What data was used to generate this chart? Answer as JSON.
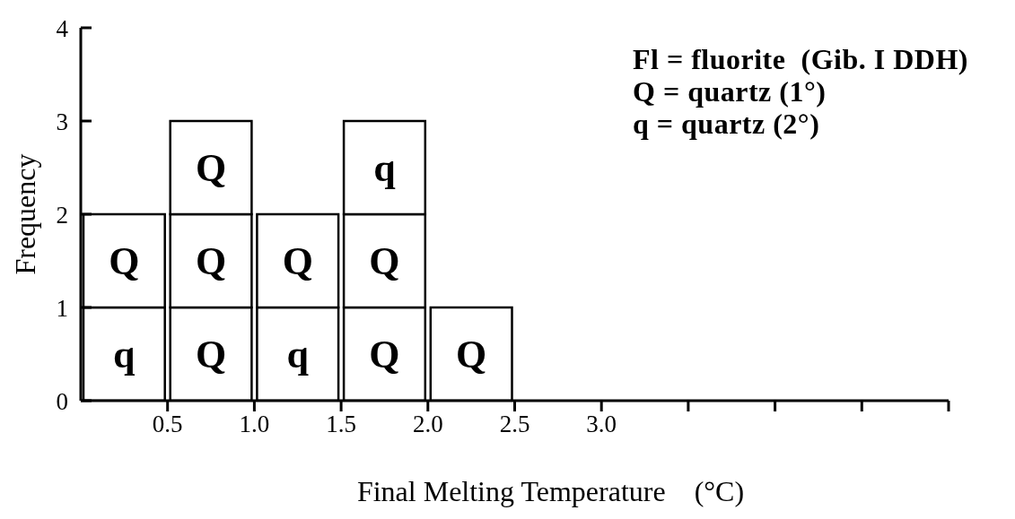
{
  "chart_data": {
    "type": "bar",
    "xlabel": "Final Melting Temperature    (°C)",
    "ylabel": "Frequency",
    "annotations": [
      "Fl = fluorite  (Gib. I DDH)",
      "Q = quartz (1°)",
      "q = quartz (2°)"
    ],
    "x": [
      0.25,
      0.75,
      1.25,
      1.75,
      2.25
    ],
    "stacked": true,
    "series": [
      {
        "color": "#ffffff",
        "values": [
          1,
          1,
          1,
          1,
          1
        ],
        "value_labels": [
          "q",
          "Q",
          "q",
          "Q",
          "Q"
        ]
      },
      {
        "color": "#ffffff",
        "values": [
          1,
          1,
          1,
          1,
          null
        ],
        "value_labels": [
          "Q",
          "Q",
          "Q",
          "Q",
          null
        ]
      },
      {
        "color": "#ffffff",
        "values": [
          null,
          1,
          null,
          1,
          null
        ],
        "value_labels": [
          null,
          "Q",
          null,
          "q",
          null
        ]
      }
    ],
    "xlim": [
      0,
      5
    ],
    "xticks": [
      0.5,
      {
        "value": 1.0,
        "label": "1.0"
      },
      1.5,
      {
        "value": 2.0,
        "label": "2.0"
      },
      2.5,
      {
        "value": 3.0,
        "label": "3.0"
      },
      {
        "value": 3.5,
        "label": null
      },
      {
        "value": 4.0,
        "label": null
      },
      {
        "value": 4.5,
        "label": null
      },
      {
        "value": 5.0,
        "label": null
      }
    ],
    "ylim": [
      0,
      4
    ],
    "yticks": [
      0,
      1,
      2,
      3,
      4
    ]
  }
}
